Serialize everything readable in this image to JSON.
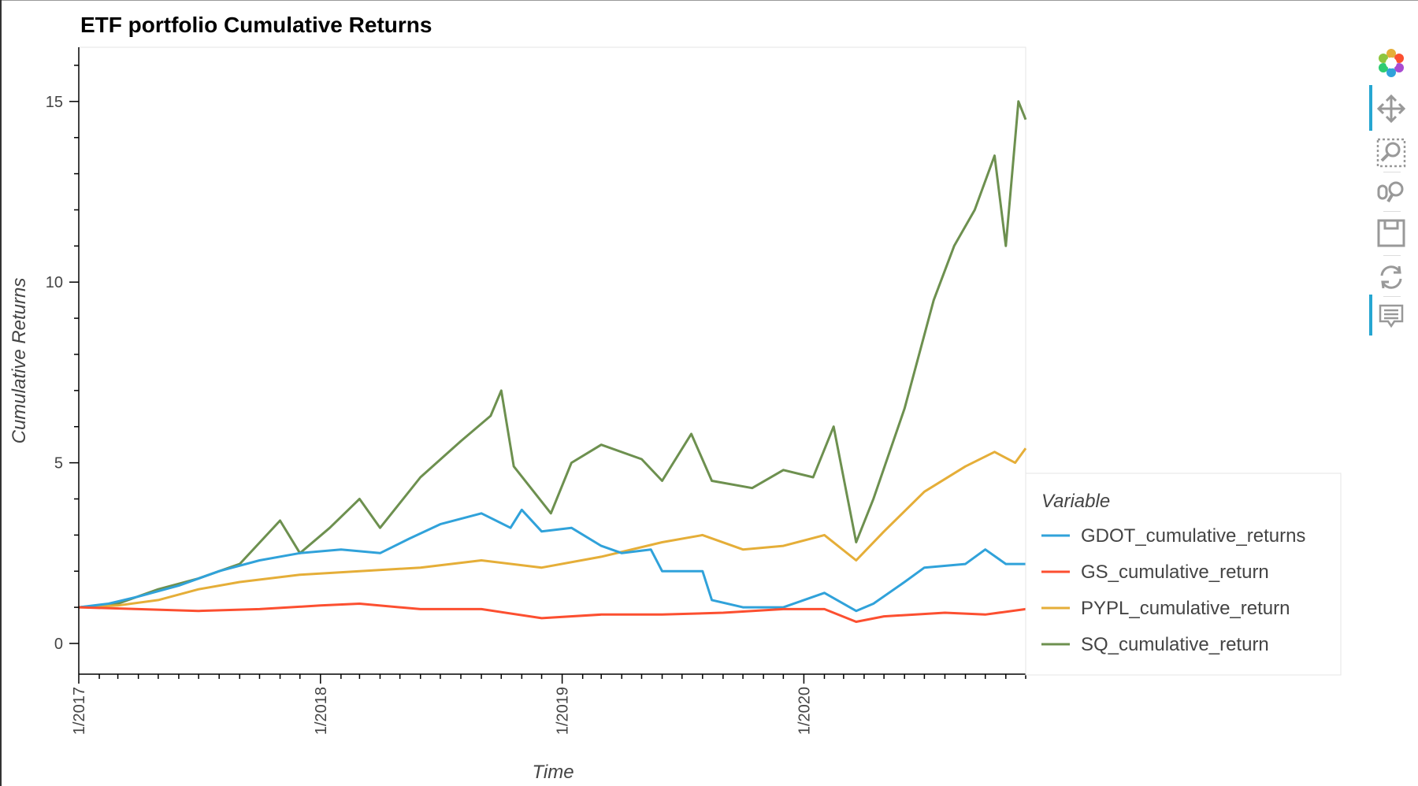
{
  "chart_data": {
    "type": "line",
    "title": "ETF portfolio Cumulative Returns",
    "xlabel": "Time",
    "ylabel": "Cumulative Returns",
    "x_ticks": [
      "1/2017",
      "1/2018",
      "1/2019",
      "1/2020"
    ],
    "y_ticks": [
      "0",
      "5",
      "10",
      "15"
    ],
    "xlim": [
      "2017-01-01",
      "2020-12-01"
    ],
    "ylim": [
      -0.85,
      16.5
    ],
    "legend": {
      "title": "Variable",
      "position": "right"
    },
    "series": [
      {
        "name": "GDOT_cumulative_returns",
        "color": "#30a2da",
        "points": [
          [
            "2017-01-01",
            1.0
          ],
          [
            "2017-02-15",
            1.1
          ],
          [
            "2017-04-01",
            1.3
          ],
          [
            "2017-06-01",
            1.6
          ],
          [
            "2017-08-01",
            2.0
          ],
          [
            "2017-10-01",
            2.3
          ],
          [
            "2017-12-01",
            2.5
          ],
          [
            "2018-02-01",
            2.6
          ],
          [
            "2018-04-01",
            2.5
          ],
          [
            "2018-05-15",
            2.9
          ],
          [
            "2018-07-01",
            3.3
          ],
          [
            "2018-09-01",
            3.6
          ],
          [
            "2018-10-15",
            3.2
          ],
          [
            "2018-11-01",
            3.7
          ],
          [
            "2018-12-01",
            3.1
          ],
          [
            "2019-01-15",
            3.2
          ],
          [
            "2019-03-01",
            2.7
          ],
          [
            "2019-04-01",
            2.5
          ],
          [
            "2019-05-15",
            2.6
          ],
          [
            "2019-06-01",
            2.0
          ],
          [
            "2019-08-01",
            2.0
          ],
          [
            "2019-08-15",
            1.2
          ],
          [
            "2019-10-01",
            1.0
          ],
          [
            "2019-12-01",
            1.0
          ],
          [
            "2020-02-01",
            1.4
          ],
          [
            "2020-03-20",
            0.9
          ],
          [
            "2020-04-15",
            1.1
          ],
          [
            "2020-06-01",
            1.7
          ],
          [
            "2020-07-01",
            2.1
          ],
          [
            "2020-09-01",
            2.2
          ],
          [
            "2020-10-01",
            2.6
          ],
          [
            "2020-11-01",
            2.2
          ],
          [
            "2020-12-01",
            2.2
          ]
        ]
      },
      {
        "name": "GS_cumulative_return",
        "color": "#fc4f30",
        "points": [
          [
            "2017-01-01",
            1.0
          ],
          [
            "2017-04-01",
            0.95
          ],
          [
            "2017-07-01",
            0.9
          ],
          [
            "2017-10-01",
            0.95
          ],
          [
            "2018-01-01",
            1.05
          ],
          [
            "2018-03-01",
            1.1
          ],
          [
            "2018-06-01",
            0.95
          ],
          [
            "2018-09-01",
            0.95
          ],
          [
            "2018-12-01",
            0.7
          ],
          [
            "2019-03-01",
            0.8
          ],
          [
            "2019-06-01",
            0.8
          ],
          [
            "2019-09-01",
            0.85
          ],
          [
            "2019-12-01",
            0.95
          ],
          [
            "2020-02-01",
            0.95
          ],
          [
            "2020-03-20",
            0.6
          ],
          [
            "2020-05-01",
            0.75
          ],
          [
            "2020-08-01",
            0.85
          ],
          [
            "2020-10-01",
            0.8
          ],
          [
            "2020-12-01",
            0.95
          ]
        ]
      },
      {
        "name": "PYPL_cumulative_return",
        "color": "#e5ae38",
        "points": [
          [
            "2017-01-01",
            1.0
          ],
          [
            "2017-03-01",
            1.05
          ],
          [
            "2017-05-01",
            1.2
          ],
          [
            "2017-07-01",
            1.5
          ],
          [
            "2017-09-01",
            1.7
          ],
          [
            "2017-12-01",
            1.9
          ],
          [
            "2018-03-01",
            2.0
          ],
          [
            "2018-06-01",
            2.1
          ],
          [
            "2018-09-01",
            2.3
          ],
          [
            "2018-12-01",
            2.1
          ],
          [
            "2019-03-01",
            2.4
          ],
          [
            "2019-06-01",
            2.8
          ],
          [
            "2019-08-01",
            3.0
          ],
          [
            "2019-10-01",
            2.6
          ],
          [
            "2019-12-01",
            2.7
          ],
          [
            "2020-02-01",
            3.0
          ],
          [
            "2020-03-20",
            2.3
          ],
          [
            "2020-05-01",
            3.1
          ],
          [
            "2020-07-01",
            4.2
          ],
          [
            "2020-09-01",
            4.9
          ],
          [
            "2020-10-15",
            5.3
          ],
          [
            "2020-11-15",
            5.0
          ],
          [
            "2020-12-01",
            5.4
          ]
        ]
      },
      {
        "name": "SQ_cumulative_return",
        "color": "#6d904f",
        "points": [
          [
            "2017-01-01",
            1.0
          ],
          [
            "2017-03-01",
            1.1
          ],
          [
            "2017-05-01",
            1.5
          ],
          [
            "2017-07-01",
            1.8
          ],
          [
            "2017-09-01",
            2.2
          ],
          [
            "2017-11-01",
            3.4
          ],
          [
            "2017-12-01",
            2.5
          ],
          [
            "2018-01-15",
            3.2
          ],
          [
            "2018-03-01",
            4.0
          ],
          [
            "2018-04-01",
            3.2
          ],
          [
            "2018-06-01",
            4.6
          ],
          [
            "2018-08-01",
            5.6
          ],
          [
            "2018-09-15",
            6.3
          ],
          [
            "2018-10-01",
            7.0
          ],
          [
            "2018-10-20",
            4.9
          ],
          [
            "2018-12-15",
            3.6
          ],
          [
            "2019-01-15",
            5.0
          ],
          [
            "2019-03-01",
            5.5
          ],
          [
            "2019-05-01",
            5.1
          ],
          [
            "2019-06-01",
            4.5
          ],
          [
            "2019-07-15",
            5.8
          ],
          [
            "2019-08-15",
            4.5
          ],
          [
            "2019-10-15",
            4.3
          ],
          [
            "2019-12-01",
            4.8
          ],
          [
            "2020-01-15",
            4.6
          ],
          [
            "2020-02-15",
            6.0
          ],
          [
            "2020-03-20",
            2.8
          ],
          [
            "2020-04-15",
            4.0
          ],
          [
            "2020-06-01",
            6.5
          ],
          [
            "2020-07-15",
            9.5
          ],
          [
            "2020-08-15",
            11.0
          ],
          [
            "2020-09-15",
            12.0
          ],
          [
            "2020-10-15",
            13.5
          ],
          [
            "2020-11-01",
            11.0
          ],
          [
            "2020-11-20",
            15.0
          ],
          [
            "2020-12-01",
            14.5
          ]
        ]
      }
    ]
  },
  "toolbar": {
    "tools": [
      "bokeh-logo-icon",
      "pan-icon",
      "box-zoom-icon",
      "wheel-zoom-icon",
      "save-icon",
      "reset-icon",
      "hover-icon"
    ]
  }
}
